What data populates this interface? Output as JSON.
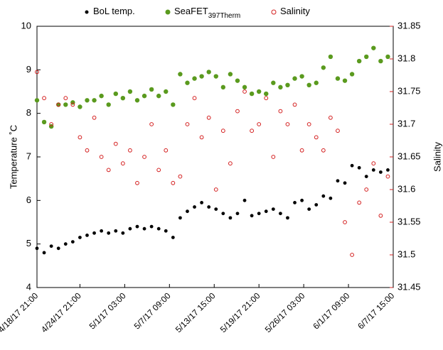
{
  "chart_data": {
    "type": "scatter",
    "y_label": "Temperature ˚C",
    "y2_label": "Salinity",
    "x": [
      "2017-04-18T21:00",
      "2017-04-19T21:00",
      "2017-04-20T21:00",
      "2017-04-21T21:00",
      "2017-04-22T21:00",
      "2017-04-23T21:00",
      "2017-04-24T21:00",
      "2017-04-25T21:00",
      "2017-04-26T21:00",
      "2017-04-27T21:00",
      "2017-04-28T21:00",
      "2017-04-29T21:00",
      "2017-04-30T21:00",
      "2017-05-01T21:00",
      "2017-05-02T21:00",
      "2017-05-03T21:00",
      "2017-05-04T21:00",
      "2017-05-05T21:00",
      "2017-05-06T21:00",
      "2017-05-07T21:00",
      "2017-05-08T21:00",
      "2017-05-09T21:00",
      "2017-05-10T21:00",
      "2017-05-11T21:00",
      "2017-05-12T21:00",
      "2017-05-13T21:00",
      "2017-05-14T21:00",
      "2017-05-15T21:00",
      "2017-05-16T21:00",
      "2017-05-17T21:00",
      "2017-05-18T21:00",
      "2017-05-19T21:00",
      "2017-05-20T21:00",
      "2017-05-21T21:00",
      "2017-05-22T21:00",
      "2017-05-23T21:00",
      "2017-05-24T21:00",
      "2017-05-25T21:00",
      "2017-05-26T21:00",
      "2017-05-27T21:00",
      "2017-05-28T21:00",
      "2017-05-29T21:00",
      "2017-05-30T21:00",
      "2017-05-31T21:00",
      "2017-06-01T21:00",
      "2017-06-02T21:00",
      "2017-06-03T21:00",
      "2017-06-04T21:00",
      "2017-06-05T21:00",
      "2017-06-06T21:00"
    ],
    "series": [
      {
        "name": "BoL temp.",
        "color": "#000000",
        "marker": "filled",
        "values": [
          4.9,
          4.8,
          4.95,
          4.9,
          5.0,
          5.05,
          5.15,
          5.2,
          5.25,
          5.3,
          5.25,
          5.3,
          5.25,
          5.35,
          5.4,
          5.35,
          5.4,
          5.35,
          5.3,
          5.15,
          5.6,
          5.75,
          5.85,
          5.95,
          5.85,
          5.8,
          5.7,
          5.6,
          5.7,
          6.0,
          5.65,
          5.7,
          5.75,
          5.8,
          5.7,
          5.6,
          5.95,
          6.0,
          5.8,
          5.9,
          6.1,
          6.05,
          6.45,
          6.4,
          6.8,
          6.75,
          6.55,
          6.7,
          6.65,
          6.7
        ]
      },
      {
        "name": "SeaFET",
        "name_subscript": "397Therm",
        "color": "#5a9a1e",
        "marker": "filled",
        "values": [
          8.3,
          7.8,
          7.7,
          8.2,
          8.2,
          8.25,
          8.15,
          8.3,
          8.3,
          8.4,
          8.2,
          8.45,
          8.35,
          8.5,
          8.3,
          8.4,
          8.55,
          8.4,
          8.5,
          8.2,
          8.9,
          8.7,
          8.8,
          8.85,
          8.95,
          8.85,
          8.6,
          8.9,
          8.75,
          8.6,
          8.45,
          8.5,
          8.45,
          8.7,
          8.6,
          8.65,
          8.8,
          8.85,
          8.65,
          8.7,
          9.05,
          9.3,
          8.8,
          8.75,
          8.9,
          9.2,
          9.3,
          9.5,
          9.2,
          9.3
        ]
      },
      {
        "name": "Salinity",
        "color": "#d42020",
        "marker": "open",
        "axis": "y2",
        "values": [
          31.78,
          31.74,
          31.7,
          31.73,
          31.74,
          31.73,
          31.68,
          31.66,
          31.71,
          31.65,
          31.63,
          31.67,
          31.64,
          31.66,
          31.61,
          31.65,
          31.7,
          31.63,
          31.66,
          31.61,
          31.62,
          31.7,
          31.74,
          31.68,
          31.71,
          31.6,
          31.69,
          31.64,
          31.72,
          31.75,
          31.69,
          31.7,
          31.74,
          31.65,
          31.72,
          31.7,
          31.73,
          31.66,
          31.7,
          31.68,
          31.66,
          31.71,
          31.69,
          31.55,
          31.5,
          31.58,
          31.6,
          31.64,
          31.56,
          31.62
        ]
      }
    ],
    "xlim": [
      "2017-04-18T21:00",
      "2017-06-07T15:00"
    ],
    "xticks": [
      {
        "value": "2017-04-18T21:00",
        "label": "4/18/17 21:00"
      },
      {
        "value": "2017-04-24T21:00",
        "label": "4/24/17 21:00"
      },
      {
        "value": "2017-05-01T03:00",
        "label": "5/1/17 03:00"
      },
      {
        "value": "2017-05-07T09:00",
        "label": "5/7/17 09:00"
      },
      {
        "value": "2017-05-13T15:00",
        "label": "5/13/17 15:00"
      },
      {
        "value": "2017-05-19T21:00",
        "label": "5/19/17 21:00"
      },
      {
        "value": "2017-05-26T03:00",
        "label": "5/26/17 03:00"
      },
      {
        "value": "2017-06-01T09:00",
        "label": "6/1/17 09:00"
      },
      {
        "value": "2017-06-07T15:00",
        "label": "6/7/17 15:00"
      }
    ],
    "ylim": [
      4,
      10
    ],
    "yticks": [
      4,
      5,
      6,
      7,
      8,
      9,
      10
    ],
    "y2lim": [
      31.45,
      31.85
    ],
    "y2ticks": [
      31.45,
      31.5,
      31.55,
      31.6,
      31.65,
      31.7,
      31.75,
      31.8,
      31.85
    ],
    "y2_color": "#d42020"
  }
}
